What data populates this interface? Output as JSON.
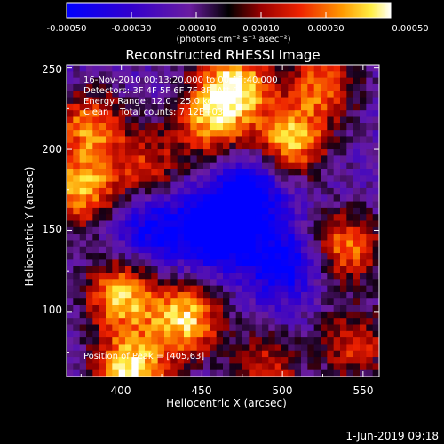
{
  "chart_data": {
    "type": "heatmap",
    "title": "Reconstructed RHESSI Image",
    "xlabel": "Heliocentric X (arcsec)",
    "ylabel": "Heliocentric Y (arcsec)",
    "xlim": [
      366,
      560
    ],
    "ylim": [
      60,
      252
    ],
    "xticks": [
      400,
      450,
      500,
      550
    ],
    "yticks": [
      100,
      150,
      200,
      250
    ],
    "colorbar": {
      "range": [
        -0.0005,
        0.0005
      ],
      "ticks": [
        "-0.00050",
        "-0.00030",
        "-0.00010",
        "0.00010",
        "0.00030",
        "0.00050"
      ],
      "tick_values": [
        -0.0005,
        -0.0003,
        -0.0001,
        0.0001,
        0.0003,
        0.0005
      ],
      "unit_label": "(photons cm⁻² s⁻¹ asec⁻²)"
    },
    "annotations": {
      "time": "16-Nov-2010 00:13:20.000 to 00:17:40.000",
      "detectors": "Detectors: 3F 4F 5F 6F 7F 8F, Att 0",
      "energy": "Energy Range: 12.0 - 25.0 keV",
      "clean": "Clean    Total counts: 7.12E+03",
      "peak": "Position of Peak = [405,63]"
    },
    "bright_sources": [
      {
        "x": 405,
        "y": 63,
        "intensity": 1.0
      },
      {
        "x": 400,
        "y": 110,
        "intensity": 0.85
      },
      {
        "x": 440,
        "y": 95,
        "intensity": 0.9
      },
      {
        "x": 375,
        "y": 175,
        "intensity": 0.8
      },
      {
        "x": 380,
        "y": 215,
        "intensity": 0.7
      },
      {
        "x": 470,
        "y": 240,
        "intensity": 0.95
      },
      {
        "x": 455,
        "y": 215,
        "intensity": 0.7
      },
      {
        "x": 505,
        "y": 205,
        "intensity": 0.85
      },
      {
        "x": 525,
        "y": 240,
        "intensity": 0.65
      },
      {
        "x": 540,
        "y": 140,
        "intensity": 0.7
      },
      {
        "x": 415,
        "y": 190,
        "intensity": 0.5
      },
      {
        "x": 490,
        "y": 65,
        "intensity": 0.5
      },
      {
        "x": 545,
        "y": 80,
        "intensity": 0.55
      }
    ],
    "dim_regions": [
      {
        "x": 460,
        "y": 150,
        "intensity": -0.8
      },
      {
        "x": 480,
        "y": 175,
        "intensity": -0.6
      },
      {
        "x": 500,
        "y": 130,
        "intensity": -0.55
      },
      {
        "x": 420,
        "y": 150,
        "intensity": -0.5
      }
    ]
  },
  "footer": {
    "date": "1-Jun-2019 09:18"
  }
}
